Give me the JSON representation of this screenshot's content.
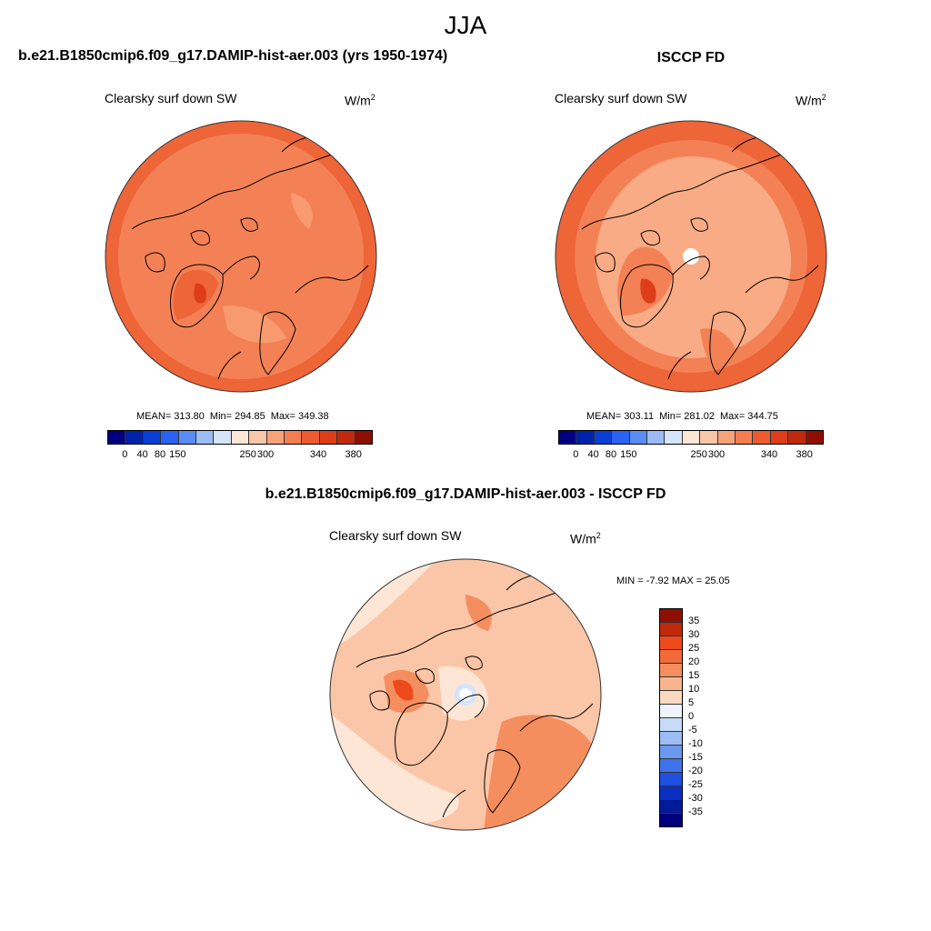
{
  "header": {
    "season": "JJA",
    "run_title": "b.e21.B1850cmip6.f09_g17.DAMIP-hist-aer.003 (yrs 1950-1974)",
    "obs_title": "ISCCP FD",
    "diff_title": "b.e21.B1850cmip6.f09_g17.DAMIP-hist-aer.003 - ISCCP FD"
  },
  "panels": [
    {
      "variable": "Clearsky surf down SW",
      "units": "W/m",
      "units_exp": "2",
      "mean_text": "MEAN= 313.80",
      "min_text": "Min= 294.85",
      "max_text": "Max= 349.38"
    },
    {
      "variable": "Clearsky surf down SW",
      "units": "W/m",
      "units_exp": "2",
      "mean_text": "MEAN= 303.11",
      "min_text": "Min= 281.02",
      "max_text": "Max= 344.75"
    }
  ],
  "diff_panel": {
    "variable": "Clearsky surf down SW",
    "units": "W/m",
    "units_exp": "2",
    "minmax_text": "MIN =  -7.92 MAX =  25.05"
  },
  "colorbar_abs": {
    "colors": [
      "#00007f",
      "#0022aa",
      "#0a3fd6",
      "#2a62f2",
      "#5a8cf5",
      "#9cbcf7",
      "#d3e4fb",
      "#fde6d6",
      "#fbc6a8",
      "#f8a27a",
      "#f47e52",
      "#ee5a30",
      "#dd3d18",
      "#c02a0c",
      "#8e0f02"
    ],
    "tick_labels": [
      "0",
      "40",
      "80",
      "150",
      "250",
      "300",
      "340",
      "380"
    ],
    "tick_fractions": [
      0.0667,
      0.1333,
      0.2,
      0.2667,
      0.5333,
      0.6,
      0.8,
      0.9333
    ]
  },
  "colorbar_diff": {
    "colors_top_to_bottom": [
      "#8e0f02",
      "#c02a0c",
      "#ee4a1c",
      "#f26a38",
      "#f58e5e",
      "#f9b48e",
      "#fcd9c0",
      "#eef3fb",
      "#c6dbf8",
      "#9dbcf4",
      "#6c98ef",
      "#3f73eb",
      "#1e4fe0",
      "#0c2fc0",
      "#001a9a",
      "#00007f"
    ],
    "labels_top_to_bottom": [
      "35",
      "30",
      "25",
      "20",
      "15",
      "10",
      "5",
      "0",
      "-5",
      "-10",
      "-15",
      "-20",
      "-25",
      "-30",
      "-35"
    ]
  },
  "map_colors": {
    "base_a": "#f48155",
    "dark_a": "#ee6538",
    "light_a": "#f79a70",
    "base_b": "#f59268",
    "light_b": "#f8ab85",
    "dark_b": "#ee6538",
    "diff_base": "#fbc6a8",
    "diff_light": "#fde6d6",
    "diff_dark": "#f58e5e",
    "diff_pole": "#d3e4fb",
    "coast": "#000000"
  }
}
